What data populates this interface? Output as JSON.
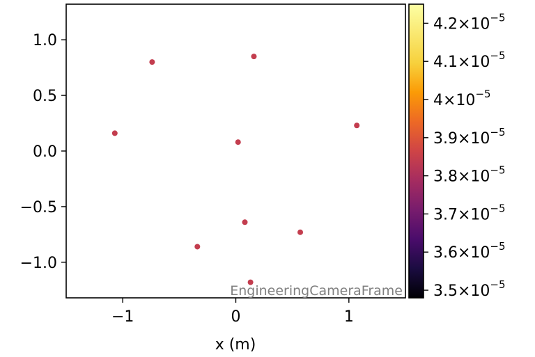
{
  "chart_data": {
    "type": "scatter",
    "xlabel": "x  (m)",
    "ylabel": "",
    "xlim": [
      -1.5,
      1.5
    ],
    "ylim": [
      -1.32,
      1.32
    ],
    "x_ticks": [
      -1,
      0,
      1
    ],
    "x_tick_labels": [
      "−1",
      "0",
      "1"
    ],
    "y_ticks": [
      1.0,
      0.5,
      0.0,
      -0.5,
      -1.0
    ],
    "y_tick_labels": [
      "1.0",
      "0.5",
      "0.0",
      "−0.5",
      "−1.0"
    ],
    "points": [
      {
        "x": -0.74,
        "y": 0.8
      },
      {
        "x": 0.16,
        "y": 0.85
      },
      {
        "x": -1.07,
        "y": 0.16
      },
      {
        "x": 0.02,
        "y": 0.08
      },
      {
        "x": 1.07,
        "y": 0.23
      },
      {
        "x": 0.08,
        "y": -0.64
      },
      {
        "x": 0.57,
        "y": -0.73
      },
      {
        "x": -0.34,
        "y": -0.86
      },
      {
        "x": 0.13,
        "y": -1.18
      }
    ],
    "point_color": "#c33d4e",
    "colorbar": {
      "colormap": "inferno",
      "vmin": 3.48e-05,
      "vmax": 4.25e-05,
      "ticks": [
        {
          "value": 3.5e-05,
          "mantissa": "3.5",
          "exponent": "−5"
        },
        {
          "value": 3.6e-05,
          "mantissa": "3.6",
          "exponent": "−5"
        },
        {
          "value": 3.7e-05,
          "mantissa": "3.7",
          "exponent": "−5"
        },
        {
          "value": 3.8e-05,
          "mantissa": "3.8",
          "exponent": "−5"
        },
        {
          "value": 3.9e-05,
          "mantissa": "3.9",
          "exponent": "−5"
        },
        {
          "value": 4e-05,
          "mantissa": "4",
          "exponent": "−5"
        },
        {
          "value": 4.1e-05,
          "mantissa": "4.1",
          "exponent": "−5"
        },
        {
          "value": 4.2e-05,
          "mantissa": "4.2",
          "exponent": "−5"
        }
      ],
      "times_symbol": "×",
      "base": "10"
    },
    "frame_label": "EngineeringCameraFrame",
    "grid": false
  }
}
